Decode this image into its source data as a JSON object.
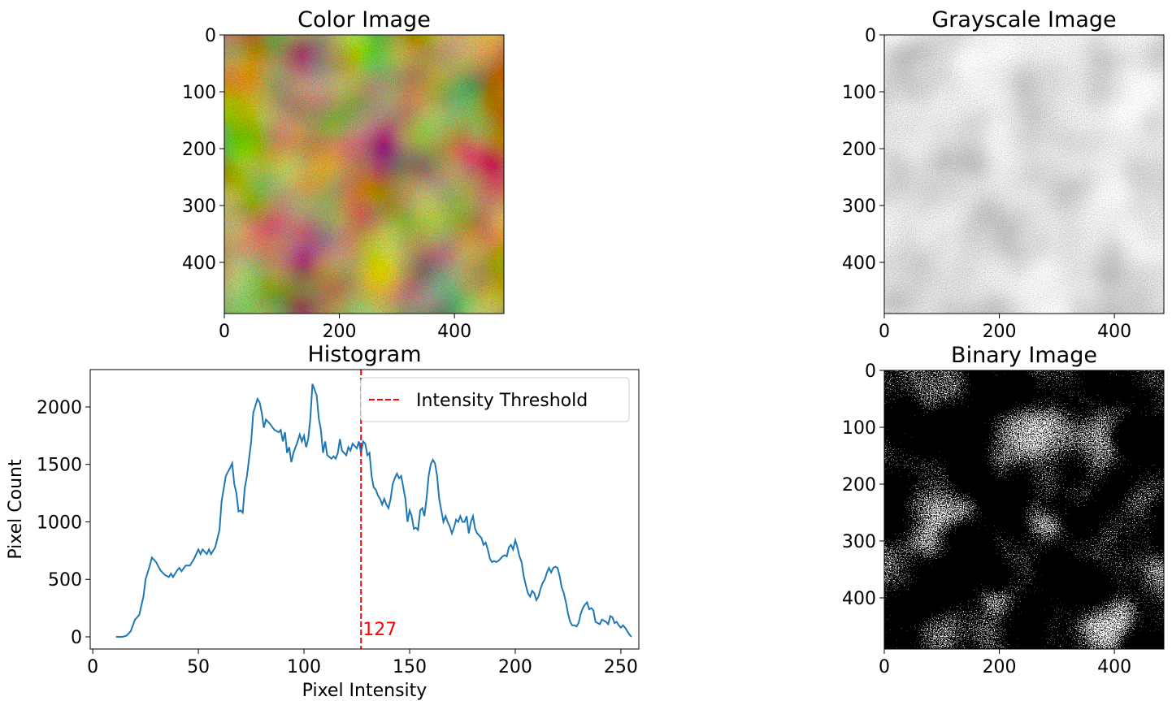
{
  "chart_data": [
    {
      "type": "image",
      "title": "Color Image",
      "colormap": "color",
      "xlim": [
        0,
        486
      ],
      "ylim": [
        490,
        0
      ],
      "xticks": [
        0,
        200,
        400
      ],
      "yticks": [
        0,
        100,
        200,
        300,
        400
      ]
    },
    {
      "type": "image",
      "title": "Grayscale Image",
      "colormap": "gray",
      "xlim": [
        0,
        486
      ],
      "ylim": [
        490,
        0
      ],
      "xticks": [
        0,
        200,
        400
      ],
      "yticks": [
        0,
        100,
        200,
        300,
        400
      ]
    },
    {
      "type": "line",
      "title": "Histogram",
      "xlabel": "Pixel Intensity",
      "ylabel": "Pixel Count",
      "color": "#1f77b4",
      "xlim": [
        -1.2,
        258.5
      ],
      "ylim": [
        -106,
        2325
      ],
      "xticks": [
        0,
        50,
        100,
        150,
        200,
        250
      ],
      "yticks": [
        0,
        500,
        1000,
        1500,
        2000
      ],
      "x": [
        11,
        14,
        16,
        18,
        20,
        22,
        24,
        25,
        27,
        28,
        30,
        32,
        34,
        36,
        37,
        38,
        40,
        41,
        42,
        44,
        46,
        48,
        50,
        51,
        52,
        54,
        55,
        56,
        58,
        60,
        61,
        63,
        65,
        66,
        67,
        68,
        69,
        70,
        71,
        72,
        73,
        75,
        76,
        78,
        79,
        80,
        81,
        82,
        84,
        86,
        88,
        89,
        90,
        91,
        92,
        93,
        94,
        95,
        97,
        98,
        99,
        100,
        101,
        102,
        103,
        104,
        106,
        107,
        108,
        109,
        110,
        111,
        113,
        114,
        115,
        116,
        117,
        118,
        119,
        120,
        121,
        122,
        123,
        124,
        125,
        126,
        127,
        128,
        129,
        130,
        131,
        132,
        133,
        134,
        135,
        136,
        137,
        138,
        139,
        140,
        141,
        142,
        143,
        144,
        145,
        146,
        147,
        148,
        149,
        150,
        151,
        152,
        153,
        154,
        155,
        156,
        157,
        158,
        159,
        160,
        161,
        162,
        163,
        164,
        165,
        166,
        167,
        168,
        169,
        170,
        171,
        172,
        173,
        174,
        175,
        176,
        177,
        178,
        179,
        180,
        181,
        182,
        184,
        185,
        186,
        187,
        188,
        189,
        190,
        191,
        192,
        193,
        194,
        195,
        196,
        197,
        198,
        199,
        200,
        201,
        202,
        203,
        204,
        205,
        206,
        207,
        208,
        209,
        210,
        211,
        212,
        213,
        214,
        215,
        216,
        217,
        218,
        219,
        220,
        221,
        222,
        223,
        224,
        225,
        226,
        227,
        228,
        229,
        230,
        231,
        232,
        233,
        234,
        235,
        236,
        237,
        238,
        239,
        240,
        241,
        242,
        243,
        244,
        245,
        246,
        247,
        248,
        249,
        250,
        251,
        252,
        253,
        254,
        255
      ],
      "values": [
        0,
        0,
        10,
        50,
        150,
        190,
        350,
        500,
        620,
        690,
        650,
        580,
        540,
        520,
        550,
        520,
        580,
        600,
        570,
        620,
        620,
        680,
        760,
        720,
        760,
        720,
        760,
        720,
        780,
        930,
        1180,
        1400,
        1470,
        1510,
        1330,
        1250,
        1090,
        1100,
        1080,
        1300,
        1400,
        1700,
        1950,
        2070,
        2040,
        1950,
        1820,
        1890,
        1850,
        1800,
        1780,
        1800,
        1700,
        1780,
        1600,
        1650,
        1520,
        1600,
        1700,
        1760,
        1700,
        1750,
        1650,
        1720,
        1900,
        2200,
        2100,
        1900,
        1800,
        1600,
        1700,
        1580,
        1550,
        1570,
        1550,
        1600,
        1720,
        1620,
        1600,
        1580,
        1650,
        1620,
        1680,
        1660,
        1640,
        1700,
        1600,
        1700,
        1680,
        1580,
        1600,
        1400,
        1300,
        1280,
        1230,
        1200,
        1150,
        1200,
        1150,
        1120,
        1200,
        1330,
        1380,
        1420,
        1380,
        1400,
        1300,
        1200,
        1000,
        1100,
        1050,
        940,
        950,
        930,
        1100,
        1120,
        1050,
        1200,
        1400,
        1500,
        1540,
        1510,
        1400,
        1200,
        1100,
        1000,
        1050,
        1000,
        960,
        900,
        950,
        1020,
        1000,
        1050,
        1000,
        1000,
        1050,
        900,
        1000,
        1050,
        940,
        900,
        860,
        800,
        820,
        760,
        680,
        650,
        660,
        650,
        660,
        680,
        700,
        710,
        700,
        780,
        800,
        760,
        840,
        780,
        700,
        650,
        530,
        450,
        380,
        350,
        400,
        380,
        320,
        350,
        420,
        470,
        500,
        560,
        600,
        560,
        600,
        610,
        600,
        530,
        430,
        380,
        300,
        200,
        130,
        100,
        100,
        90,
        120,
        200,
        250,
        280,
        300,
        240,
        250,
        230,
        130,
        120,
        110,
        150,
        140,
        130,
        110,
        180,
        170,
        120,
        130,
        100,
        80,
        100,
        80,
        50,
        20,
        0
      ],
      "threshold": {
        "name": "Intensity Threshold",
        "value": 127,
        "color": "#ff0000"
      },
      "legend": "upper right"
    },
    {
      "type": "image",
      "title": "Binary Image",
      "colormap": "binary",
      "xlim": [
        0,
        486
      ],
      "ylim": [
        490,
        0
      ],
      "xticks": [
        0,
        200,
        400
      ],
      "yticks": [
        0,
        100,
        200,
        300,
        400
      ]
    }
  ]
}
